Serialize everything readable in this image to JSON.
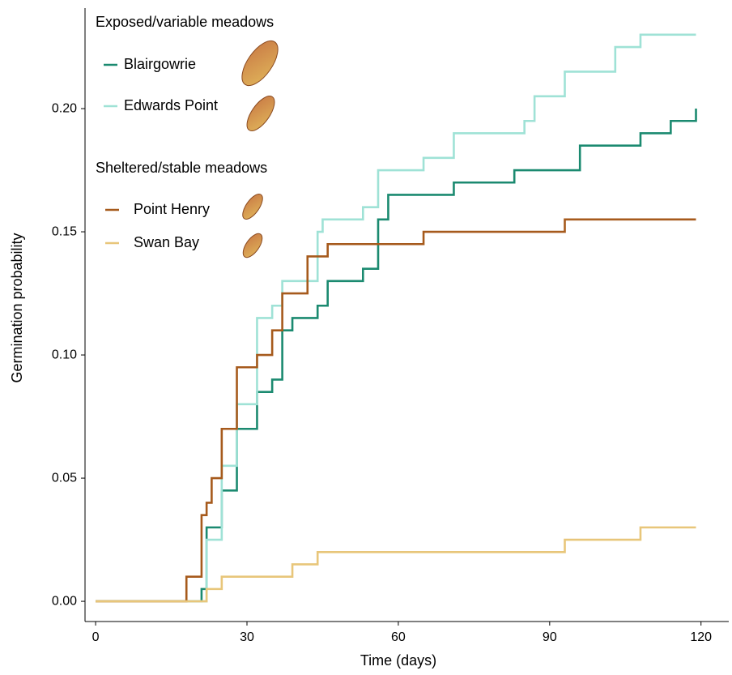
{
  "chart_data": {
    "type": "line",
    "step": "post",
    "x_label": "Time (days)",
    "y_label": "Germination probability",
    "xlim": [
      -2.1,
      125.5
    ],
    "ylim": [
      -0.0082,
      0.2408
    ],
    "xticks": [
      0,
      30,
      60,
      90,
      120
    ],
    "yticks": [
      {
        "value": 0,
        "label": "0.00"
      },
      {
        "value": 0.05,
        "label": "0.05"
      },
      {
        "value": 0.1,
        "label": "0.10"
      },
      {
        "value": 0.15,
        "label": "0.15"
      },
      {
        "value": 0.2,
        "label": "0.20"
      }
    ],
    "legend_groups": [
      {
        "title": "Exposed/variable meadows",
        "series": [
          {
            "name": "Blairgowrie",
            "color": "#1b8a70",
            "x": [
              0,
              21,
              22,
              25,
              28,
              32,
              35,
              37,
              39,
              44,
              46,
              53,
              56,
              58,
              71,
              83,
              96,
              108,
              114,
              119
            ],
            "values": [
              0,
              0.005,
              0.03,
              0.045,
              0.07,
              0.085,
              0.09,
              0.11,
              0.115,
              0.12,
              0.13,
              0.135,
              0.155,
              0.165,
              0.17,
              0.175,
              0.185,
              0.19,
              0.195,
              0.2
            ]
          },
          {
            "name": "Edwards Point",
            "color": "#9fe2d6",
            "x": [
              0,
              22,
              25,
              28,
              32,
              35,
              37,
              44,
              45,
              53,
              56,
              65,
              71,
              85,
              87,
              93,
              103,
              108,
              119
            ],
            "values": [
              0,
              0.025,
              0.055,
              0.08,
              0.115,
              0.12,
              0.13,
              0.15,
              0.155,
              0.16,
              0.175,
              0.18,
              0.19,
              0.195,
              0.205,
              0.215,
              0.225,
              0.23,
              0.23
            ]
          }
        ]
      },
      {
        "title": "Sheltered/stable meadows",
        "series": [
          {
            "name": "Point Henry",
            "color": "#a65a1c",
            "x": [
              0,
              18,
              21,
              22,
              23,
              25,
              28,
              32,
              35,
              37,
              42,
              46,
              65,
              93,
              119
            ],
            "values": [
              0,
              0.01,
              0.035,
              0.04,
              0.05,
              0.07,
              0.095,
              0.1,
              0.11,
              0.125,
              0.14,
              0.145,
              0.15,
              0.155,
              0.155
            ]
          },
          {
            "name": "Swan Bay",
            "color": "#e8c67a",
            "x": [
              0,
              22,
              25,
              39,
              44,
              93,
              108,
              119
            ],
            "values": [
              0,
              0.005,
              0.01,
              0.015,
              0.02,
              0.025,
              0.03,
              0.03
            ]
          }
        ]
      }
    ]
  }
}
